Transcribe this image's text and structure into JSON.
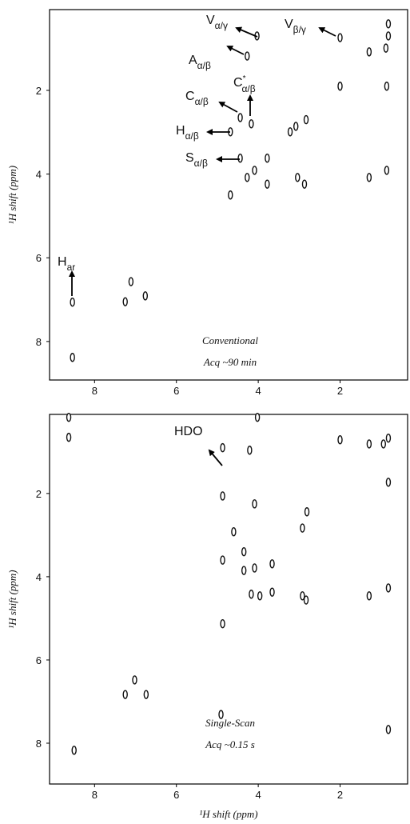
{
  "chart_data": [
    {
      "type": "scatter",
      "method": "Conventional",
      "acquisition": "Acq ~90 min",
      "ylabel": "¹H shift (ppm)",
      "annotations": [
        {
          "text": "V",
          "sub": "α/γ"
        },
        {
          "text": "A",
          "sub": "α/β"
        },
        {
          "text": "V",
          "sub": "β/γ"
        },
        {
          "text": "C",
          "sup": "*",
          "sub": "α/β"
        },
        {
          "text": "C",
          "sub": "α/β"
        },
        {
          "text": "H",
          "sub": "α/β"
        },
        {
          "text": "S",
          "sub": "α/β"
        },
        {
          "text": "H",
          "sub": "ar"
        }
      ],
      "x": [
        0.82,
        0.82,
        0.88,
        1.29,
        2.0,
        2.0,
        0.86,
        4.03,
        4.27,
        4.44,
        4.17,
        4.68,
        2.83,
        3.08,
        3.22,
        3.78,
        4.44,
        4.09,
        4.27,
        3.78,
        3.04,
        2.87,
        1.29,
        0.86,
        4.68,
        7.25,
        7.11,
        6.76,
        8.54,
        8.54
      ],
      "y": [
        0.7,
        0.41,
        0.99,
        1.08,
        0.74,
        1.9,
        1.9,
        0.7,
        1.18,
        2.65,
        2.8,
        2.99,
        2.7,
        2.86,
        2.99,
        3.62,
        3.62,
        3.91,
        4.08,
        4.24,
        4.08,
        4.24,
        4.08,
        3.91,
        4.5,
        7.05,
        6.57,
        6.91,
        7.06,
        8.38
      ],
      "xlim": [
        9.1,
        0.35
      ],
      "ylim": [
        0.07,
        8.92
      ],
      "xticks": [
        8,
        6,
        4,
        2
      ],
      "yticks": [
        2,
        4,
        6,
        8
      ]
    },
    {
      "type": "scatter",
      "method": "Single-Scan",
      "acquisition": "Acq ~0.15 s",
      "ylabel": "¹H shift (ppm)",
      "xlabel": "¹H shift (ppm)",
      "annotations": [
        {
          "text": "HDO"
        }
      ],
      "x": [
        8.63,
        8.63,
        2.0,
        1.29,
        0.94,
        0.82,
        4.21,
        4.02,
        4.87,
        4.87,
        4.87,
        4.87,
        4.09,
        4.6,
        2.81,
        2.92,
        4.35,
        4.35,
        4.09,
        4.17,
        3.96,
        3.66,
        3.66,
        2.92,
        2.83,
        1.29,
        0.82,
        0.82,
        7.25,
        7.02,
        6.74,
        8.5,
        0.82,
        4.91
      ],
      "y": [
        0.17,
        0.65,
        0.71,
        0.81,
        0.81,
        0.67,
        0.96,
        0.17,
        0.9,
        2.06,
        3.6,
        5.13,
        2.25,
        2.92,
        2.44,
        2.83,
        3.4,
        3.85,
        3.79,
        4.42,
        4.46,
        3.69,
        4.37,
        4.46,
        4.56,
        4.46,
        4.27,
        1.73,
        6.83,
        6.48,
        6.83,
        8.17,
        7.67,
        7.31
      ],
      "xlim": [
        9.1,
        0.35
      ],
      "ylim": [
        0.1,
        8.98
      ],
      "xticks": [
        8,
        6,
        4,
        2
      ],
      "yticks": [
        2,
        4,
        6,
        8
      ]
    }
  ]
}
